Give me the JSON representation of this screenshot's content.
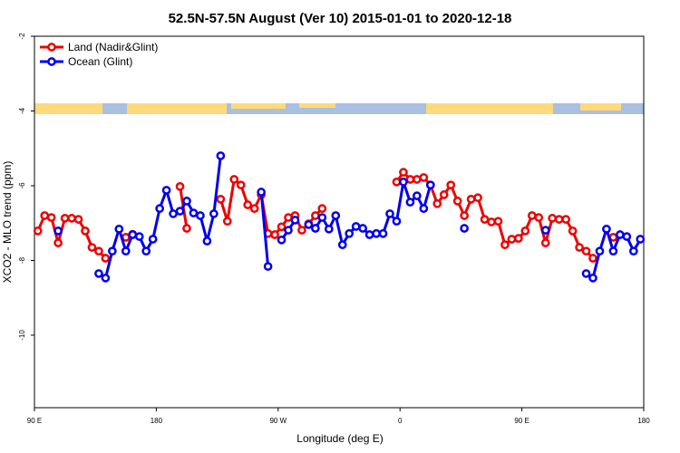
{
  "chart_data": {
    "type": "line",
    "title": "52.5N-57.5N August (Ver 10)   2015-01-01 to 2020-12-18",
    "x_label": "Longitude (deg E)",
    "y_label": "XCO2 - MLO trend (ppm)",
    "x": [
      92.5,
      97.5,
      102.5,
      107.5,
      112.5,
      117.5,
      122.5,
      127.5,
      132.5,
      137.5,
      142.5,
      147.5,
      152.5,
      157.5,
      162.5,
      167.5,
      172.5,
      177.5,
      182.5,
      187.5,
      192.5,
      197.5,
      202.5,
      207.5,
      212.5,
      217.5,
      222.5,
      227.5,
      232.5,
      237.5,
      242.5,
      247.5,
      252.5,
      257.5,
      262.5,
      267.5,
      272.5,
      277.5,
      282.5,
      287.5,
      292.5,
      297.5,
      302.5,
      307.5,
      312.5,
      317.5,
      322.5,
      327.5,
      332.5,
      337.5,
      342.5,
      347.5,
      352.5,
      357.5,
      362.5,
      367.5,
      372.5,
      377.5,
      382.5,
      387.5,
      392.5,
      397.5,
      402.5,
      407.5,
      412.5,
      417.5,
      422.5,
      427.5,
      432.5,
      437.5,
      442.5,
      447.5,
      452.5,
      457.5,
      462.5,
      467.5,
      472.5,
      477.5,
      482.5,
      487.5,
      492.5,
      497.5,
      502.5,
      507.5,
      512.5,
      517.5,
      522.5,
      527.5,
      532.5,
      537.5
    ],
    "series": [
      {
        "name": "Land (Nadir&Glint)",
        "color": "#ee0000",
        "values": [
          -7.21,
          -6.8,
          -6.85,
          -7.53,
          -6.87,
          -6.87,
          -6.9,
          -7.21,
          -7.65,
          -7.75,
          -7.94,
          null,
          null,
          -7.38,
          -7.3,
          null,
          null,
          null,
          null,
          null,
          null,
          -6.02,
          -7.14,
          null,
          null,
          null,
          null,
          -6.36,
          -6.95,
          -5.83,
          -5.98,
          -6.51,
          -6.61,
          -6.24,
          -7.28,
          -7.31,
          -7.1,
          -6.85,
          -6.8,
          -7.19,
          -7.02,
          -6.8,
          -6.61,
          null,
          null,
          null,
          null,
          null,
          null,
          null,
          null,
          null,
          null,
          -5.9,
          -5.64,
          -5.83,
          -5.83,
          -5.78,
          -5.98,
          -6.48,
          -6.24,
          -5.98,
          -6.41,
          -6.8,
          -6.36,
          -6.32,
          -6.9,
          -6.97,
          -6.95,
          -7.58,
          -7.43,
          -7.41,
          -7.21,
          -6.8,
          -6.85,
          -7.53,
          -6.87,
          -6.9,
          -6.9,
          -7.21,
          -7.65,
          -7.75,
          -7.94,
          null,
          null,
          -7.38,
          null,
          null,
          null,
          null
        ]
      },
      {
        "name": "Ocean (Glint)",
        "color": "#0000ee",
        "values": [
          null,
          null,
          null,
          -7.21,
          null,
          null,
          null,
          null,
          null,
          -8.35,
          -8.47,
          -7.75,
          -7.16,
          -7.75,
          -7.31,
          -7.36,
          -7.75,
          -7.43,
          -6.61,
          -6.12,
          -6.75,
          -6.68,
          -6.41,
          -6.73,
          -6.8,
          -7.48,
          -6.75,
          -5.2,
          null,
          null,
          null,
          null,
          null,
          -6.17,
          -8.16,
          null,
          -7.45,
          -7.19,
          -6.92,
          null,
          -7.04,
          -7.14,
          -6.85,
          -7.16,
          -6.8,
          -7.58,
          -7.28,
          -7.09,
          -7.14,
          -7.31,
          -7.28,
          -7.28,
          -6.75,
          -6.95,
          -5.9,
          -6.44,
          -6.27,
          -6.61,
          -5.98,
          null,
          null,
          null,
          null,
          -7.14,
          null,
          null,
          null,
          null,
          null,
          null,
          null,
          null,
          null,
          null,
          null,
          -7.19,
          null,
          null,
          null,
          null,
          null,
          -8.35,
          -8.47,
          -7.75,
          -7.16,
          -7.75,
          -7.31,
          -7.36,
          -7.75,
          -7.43
        ]
      }
    ],
    "xlim": [
      90,
      540
    ],
    "xticks": [
      {
        "value": 90,
        "label": "90 E"
      },
      180,
      {
        "value": 270,
        "label": "90 W"
      },
      {
        "value": 360,
        "label": "0"
      },
      {
        "value": 450,
        "label": "90 E"
      },
      {
        "value": 540,
        "label": "180"
      }
    ],
    "ylim": [
      -11.94,
      -2
    ],
    "yticks": [
      -2,
      -4,
      -6,
      -8,
      -10
    ],
    "legend": "upper left"
  }
}
